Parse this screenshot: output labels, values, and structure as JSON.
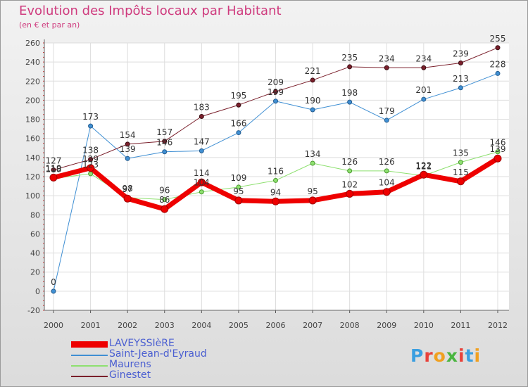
{
  "chart_data": {
    "type": "line",
    "title": "Evolution des Impôts locaux par Habitant",
    "subtitle": "(en € et par an)",
    "categories": [
      "2000",
      "2001",
      "2002",
      "2003",
      "2004",
      "2005",
      "2006",
      "2007",
      "2008",
      "2009",
      "2010",
      "2011",
      "2012"
    ],
    "ylim": [
      -20,
      260
    ],
    "yticks": [
      -20,
      0,
      20,
      40,
      60,
      80,
      100,
      120,
      140,
      160,
      180,
      200,
      220,
      240,
      260
    ],
    "grid": true,
    "series": [
      {
        "name": "LAVEYSSIèRE",
        "color": "#ee0000",
        "values": [
          119,
          129,
          97,
          86,
          114,
          95,
          94,
          95,
          102,
          104,
          122,
          115,
          139
        ]
      },
      {
        "name": "Saint-Jean-d'Eyraud",
        "color": "#3f8fd3",
        "values": [
          0,
          173,
          139,
          146,
          147,
          166,
          199,
          190,
          198,
          179,
          201,
          213,
          228
        ]
      },
      {
        "name": "Maurens",
        "color": "#8ee070",
        "values": [
          118,
          123,
          98,
          96,
          104,
          109,
          116,
          134,
          126,
          126,
          121,
          135,
          146
        ]
      },
      {
        "name": "Ginestet",
        "color": "#7a1f2b",
        "values": [
          127,
          138,
          154,
          157,
          183,
          195,
          209,
          221,
          235,
          234,
          234,
          239,
          255
        ]
      }
    ]
  },
  "legend": {
    "items": [
      "LAVEYSSIèRE",
      "Saint-Jean-d'Eyraud",
      "Maurens",
      "Ginestet"
    ]
  },
  "logo": {
    "letters": [
      "P",
      "r",
      "o",
      "x",
      "i",
      "t",
      "i"
    ],
    "colors": [
      "#3b9fe0",
      "#e8413a",
      "#f0a020",
      "#4ab540",
      "#e8413a",
      "#3b9fe0",
      "#f0a020"
    ]
  }
}
